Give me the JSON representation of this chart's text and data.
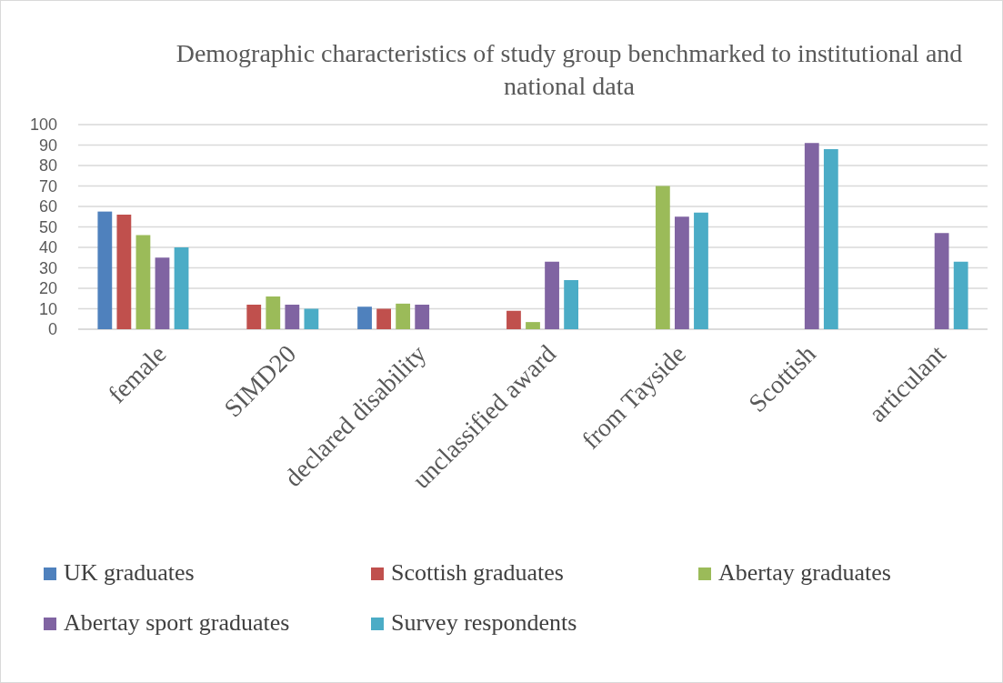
{
  "chart_data": {
    "type": "bar",
    "title": "Demographic characteristics of study group benchmarked to institutional and national data",
    "categories": [
      "female",
      "SIMD20",
      "declared disability",
      "unclassified award",
      "from Tayside",
      "Scottish",
      "articulant"
    ],
    "series": [
      {
        "name": "UK graduates",
        "color": "#4f81bd",
        "values": [
          57.5,
          null,
          11,
          null,
          null,
          null,
          null
        ]
      },
      {
        "name": "Scottish graduates",
        "color": "#c0504d",
        "values": [
          56,
          12,
          10,
          9,
          null,
          null,
          null
        ]
      },
      {
        "name": "Abertay graduates",
        "color": "#9bbb59",
        "values": [
          46,
          16,
          12.5,
          3.5,
          70,
          null,
          null
        ]
      },
      {
        "name": "Abertay sport graduates",
        "color": "#8064a2",
        "values": [
          35,
          12,
          12,
          33,
          55,
          91,
          47
        ]
      },
      {
        "name": "Survey respondents",
        "color": "#4bacc6",
        "values": [
          40,
          10,
          null,
          24,
          57,
          88,
          33
        ]
      }
    ],
    "ylim": [
      0,
      100
    ],
    "yticks": [
      0,
      10,
      20,
      30,
      40,
      50,
      60,
      70,
      80,
      90,
      100
    ],
    "grid": "y",
    "legend": "bottom"
  }
}
